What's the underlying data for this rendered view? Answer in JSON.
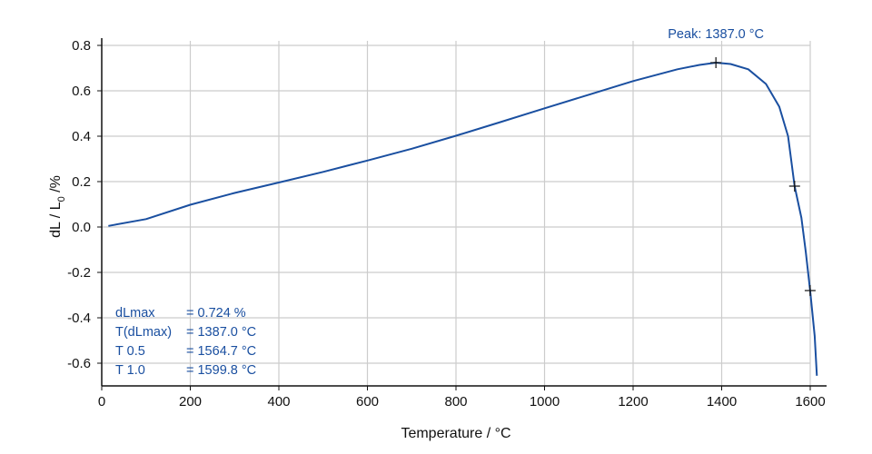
{
  "chart_data": {
    "type": "line",
    "xlabel": "Temperature / °C",
    "ylabel": {
      "main": "dL / L",
      "subscript": "0",
      "suffix": " /%"
    },
    "xlim": [
      0,
      1600
    ],
    "ylim": [
      -0.7,
      0.8
    ],
    "x_ticks": [
      0,
      200,
      400,
      600,
      800,
      1000,
      1200,
      1400,
      1600
    ],
    "y_ticks": [
      0.8,
      0.6,
      0.4,
      0.2,
      0.0,
      -0.2,
      -0.4,
      -0.6
    ],
    "x_tick_labels": [
      "0",
      "200",
      "400",
      "600",
      "800",
      "1000",
      "1200",
      "1400",
      "1600"
    ],
    "y_tick_labels": [
      "0.8",
      "0.6",
      "0.4",
      "0.2",
      "0.0",
      "-0.2",
      "-0.4",
      "-0.6"
    ],
    "grid": true,
    "line_color": "#1a4fa0",
    "text_color": "#1a4fa0",
    "series": [
      {
        "points": [
          [
            15,
            0.005
          ],
          [
            100,
            0.035
          ],
          [
            200,
            0.098
          ],
          [
            300,
            0.15
          ],
          [
            400,
            0.196
          ],
          [
            500,
            0.243
          ],
          [
            600,
            0.293
          ],
          [
            700,
            0.345
          ],
          [
            800,
            0.402
          ],
          [
            900,
            0.462
          ],
          [
            1000,
            0.523
          ],
          [
            1100,
            0.583
          ],
          [
            1200,
            0.643
          ],
          [
            1300,
            0.695
          ],
          [
            1350,
            0.714
          ],
          [
            1387,
            0.724
          ],
          [
            1420,
            0.718
          ],
          [
            1460,
            0.695
          ],
          [
            1500,
            0.63
          ],
          [
            1530,
            0.53
          ],
          [
            1550,
            0.4
          ],
          [
            1564.7,
            0.18
          ],
          [
            1580,
            0.04
          ],
          [
            1590,
            -0.11
          ],
          [
            1599.8,
            -0.28
          ],
          [
            1610,
            -0.48
          ],
          [
            1615,
            -0.655
          ]
        ]
      }
    ],
    "markers": [
      {
        "x": 1387.0,
        "y": 0.724
      },
      {
        "x": 1564.7,
        "y": 0.18
      },
      {
        "x": 1599.8,
        "y": -0.28
      }
    ],
    "peak_annotation": {
      "x": 1387.0,
      "text": "Peak: 1387.0 °C"
    },
    "results": [
      {
        "label": "dLmax",
        "value": "= 0.724 %"
      },
      {
        "label": "T(dLmax)",
        "value": "= 1387.0 °C"
      },
      {
        "label": "T 0.5",
        "value": "= 1564.7 °C"
      },
      {
        "label": "T 1.0",
        "value": "= 1599.8 °C"
      }
    ]
  }
}
